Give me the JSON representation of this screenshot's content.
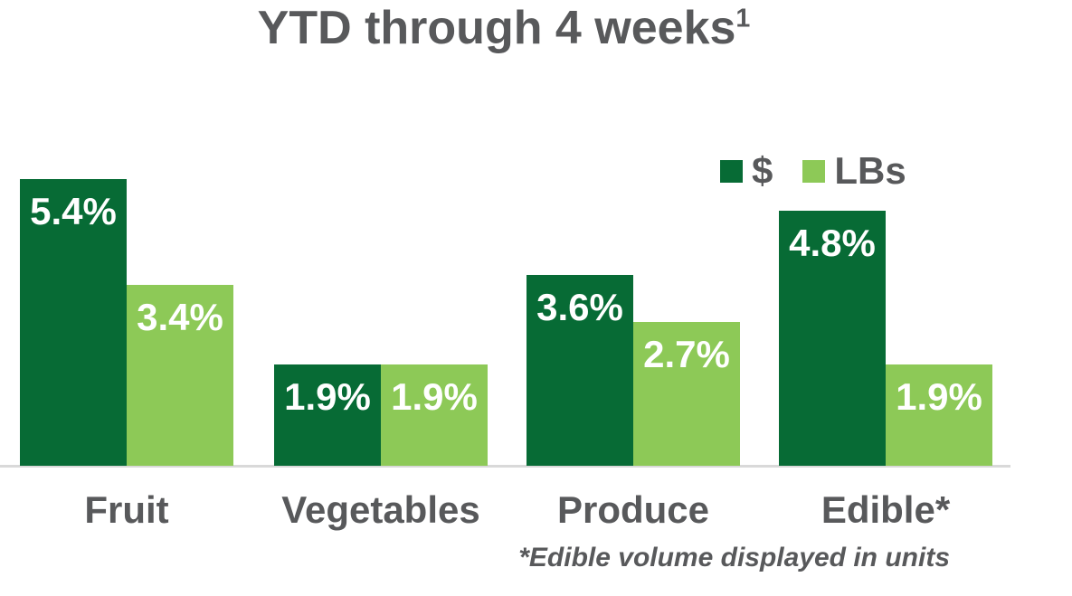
{
  "title": {
    "text": "YTD through 4 weeks",
    "superscript": "1"
  },
  "legend": [
    {
      "label": "$",
      "color": "#076B35"
    },
    {
      "label": "LBs",
      "color": "#8DC957"
    }
  ],
  "footnote": "*Edible volume displayed in units",
  "colors": {
    "dollars_bar": "#076B35",
    "lbs_bar": "#8DC957",
    "text_gray": "#58595B",
    "axis_line": "#D9D9D9",
    "value_label": "#FFFFFF",
    "background": "#FFFFFF"
  },
  "chart_data": {
    "type": "bar",
    "title": "YTD through 4 weeks¹",
    "categories": [
      "Fruit",
      "Vegetables",
      "Produce",
      "Edible*"
    ],
    "series": [
      {
        "name": "$",
        "color": "#076B35",
        "values": [
          5.4,
          1.9,
          3.6,
          4.8
        ],
        "labels": [
          "5.4%",
          "1.9%",
          "3.6%",
          "4.8%"
        ]
      },
      {
        "name": "LBs",
        "color": "#8DC957",
        "values": [
          3.4,
          1.9,
          2.7,
          1.9
        ],
        "labels": [
          "3.4%",
          "1.9%",
          "2.7%",
          "1.9%"
        ]
      }
    ],
    "ylim": [
      0,
      5.4
    ],
    "grid": false,
    "y_axis_visible": false,
    "legend_position": "top-right",
    "value_label_format": "percent",
    "footnote": "*Edible volume displayed in units"
  }
}
